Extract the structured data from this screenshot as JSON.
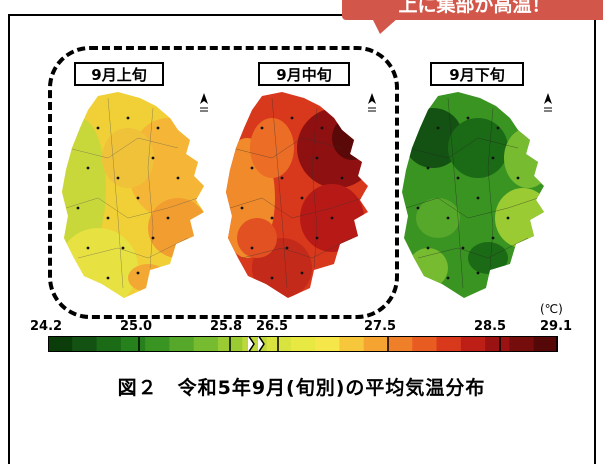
{
  "callout": {
    "text": "上に集部が高温！"
  },
  "periods": [
    "9月上旬",
    "9月中旬",
    "9月下旬"
  ],
  "unit": "(℃)",
  "scale": {
    "labels": [
      "24.2",
      "25.0",
      "25.8",
      "26.5",
      "27.5",
      "28.5",
      "29.1"
    ],
    "colors": [
      "#0b3d0b",
      "#145214",
      "#1b6b16",
      "#26801c",
      "#3a9422",
      "#56a82a",
      "#76bb30",
      "#9acb33",
      "#bcd83a",
      "#d8e33f",
      "#e8e842",
      "#f5e64a",
      "#f7c73b",
      "#f5a431",
      "#f07f29",
      "#e85c22",
      "#d8381c",
      "#bd1f17",
      "#9a1212",
      "#760d0d",
      "#560808"
    ]
  },
  "caption": "図２　令和5年9月(旬別)の平均気温分布"
}
